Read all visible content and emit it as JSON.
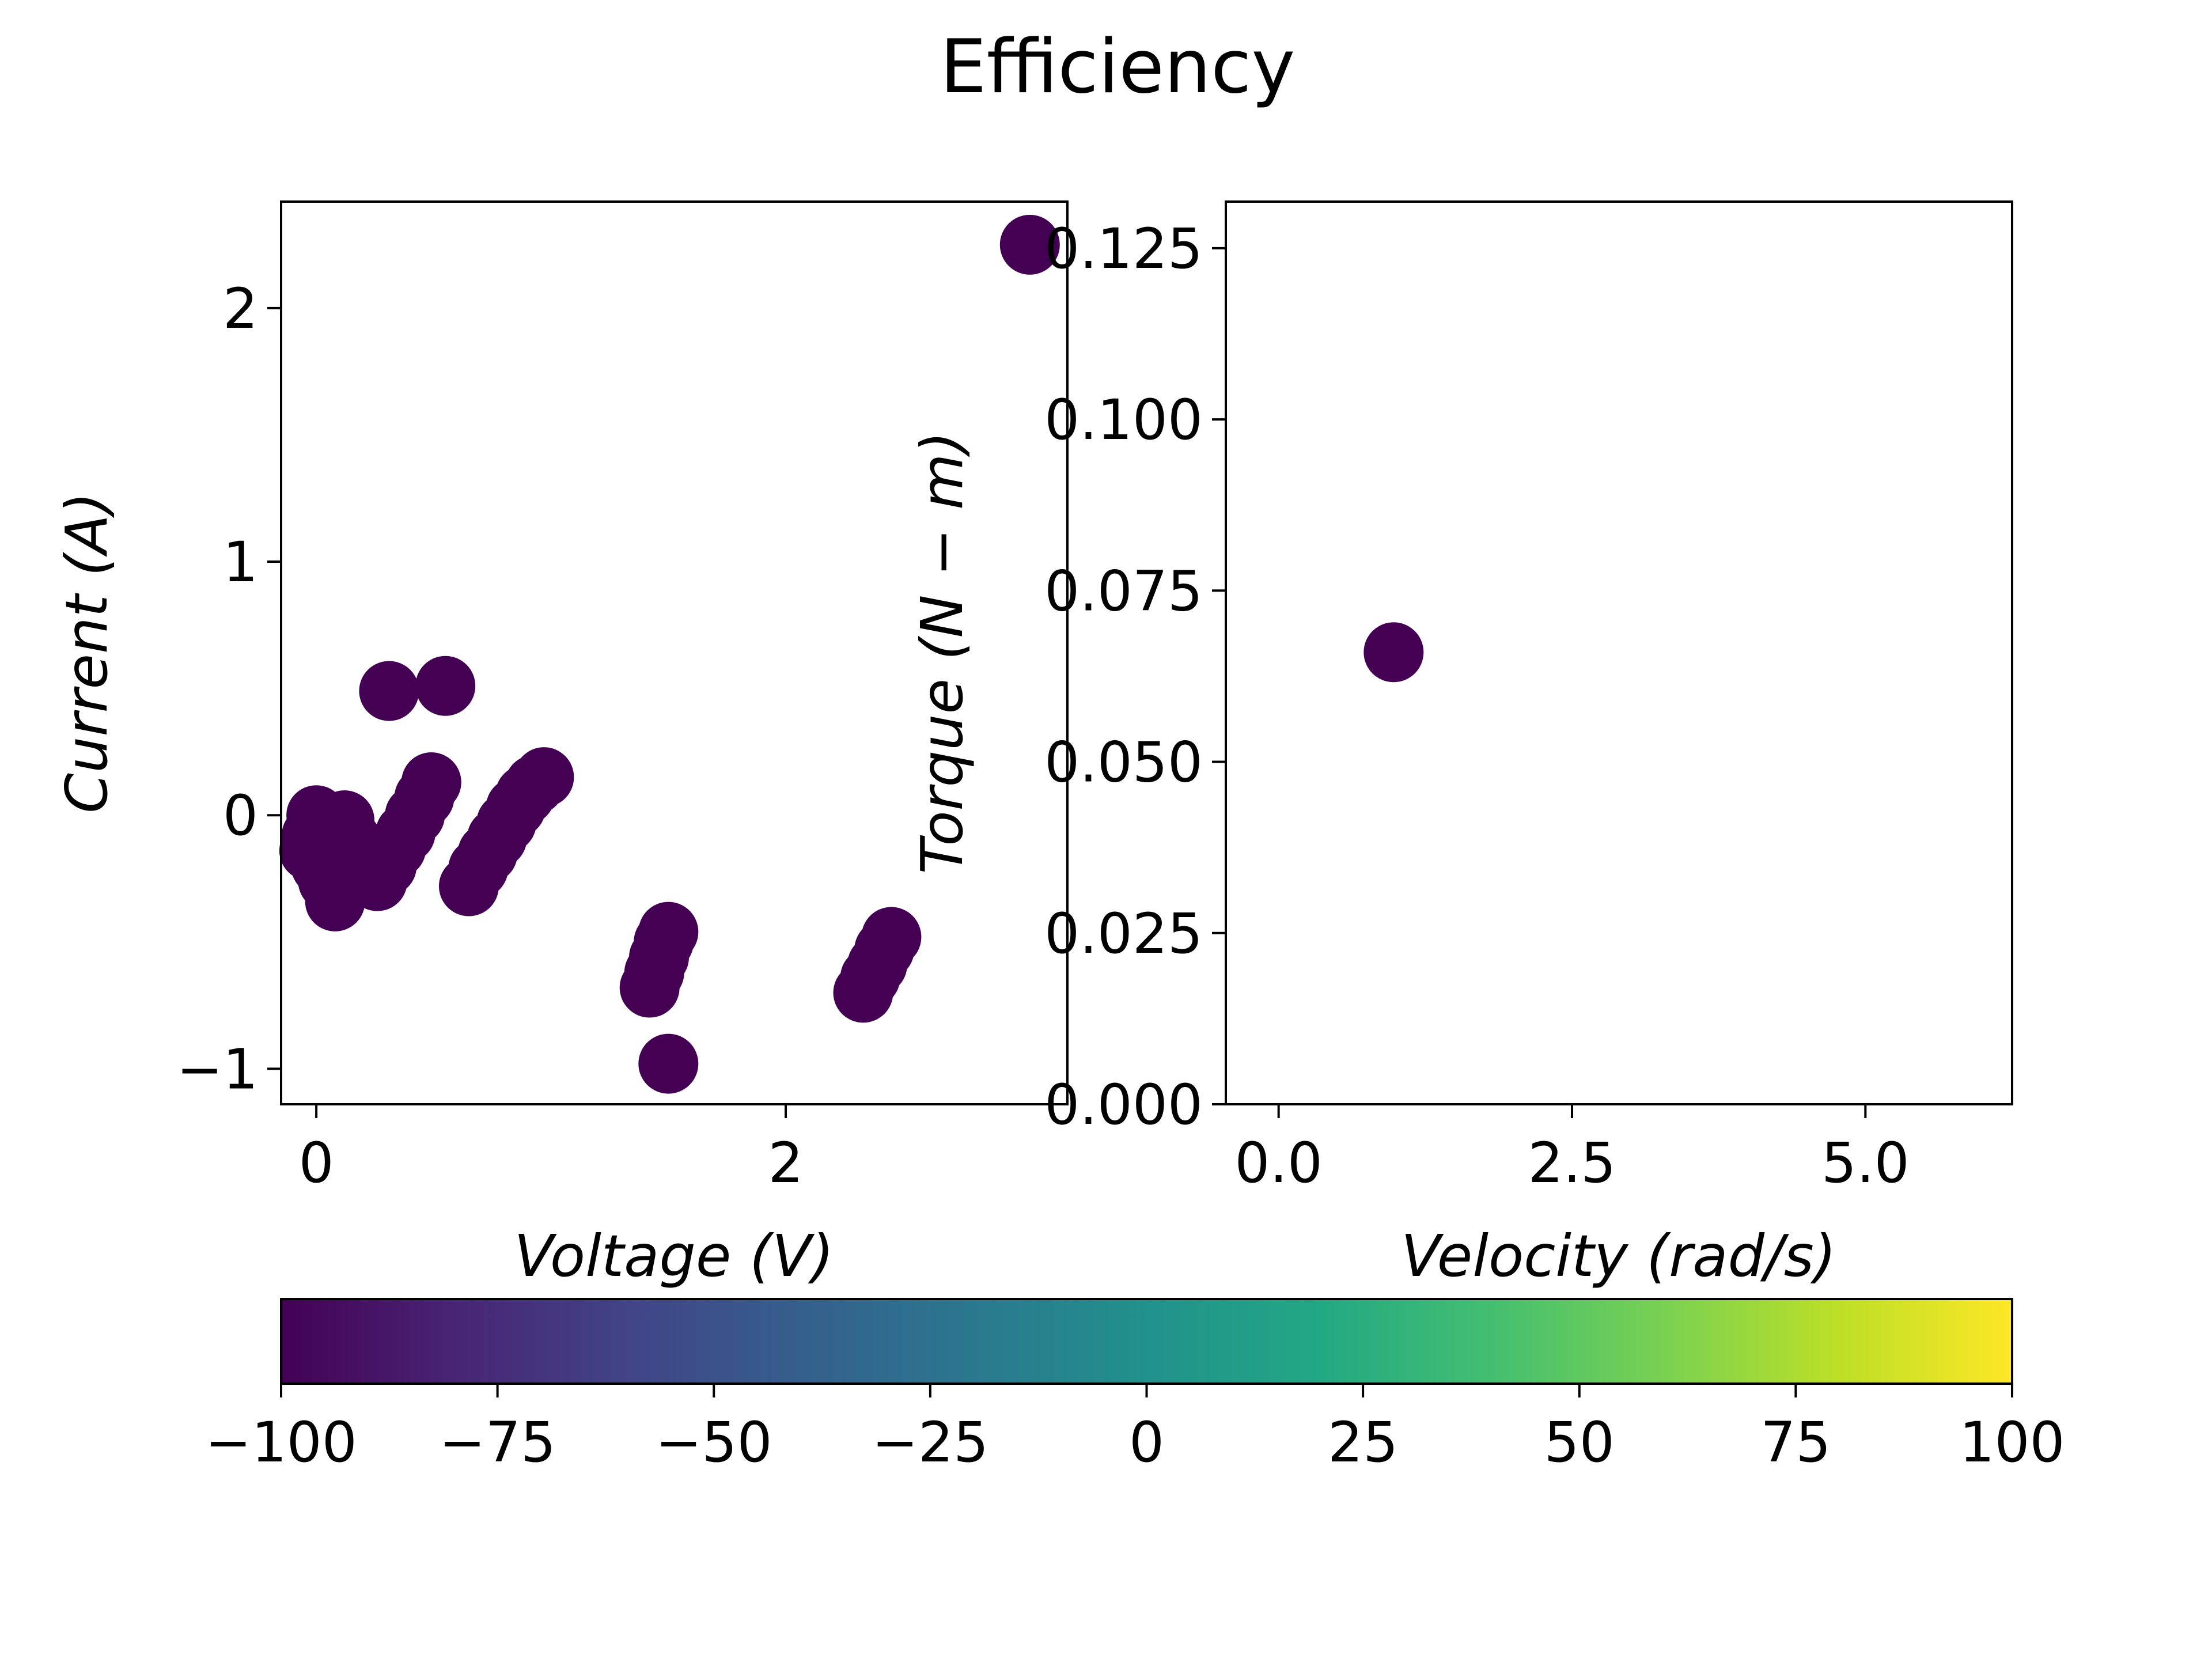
{
  "title": "Efficiency",
  "chart_data": [
    {
      "type": "scatter",
      "xlabel": "Voltage (V)",
      "ylabel": "Current (A)",
      "xlim": [
        -0.15,
        3.2
      ],
      "ylim": [
        -1.14,
        2.42
      ],
      "xticks": [
        {
          "value": 0,
          "label": "0"
        },
        {
          "value": 2,
          "label": "2"
        }
      ],
      "yticks": [
        {
          "value": -1,
          "label": "−1"
        },
        {
          "value": 0,
          "label": "0"
        },
        {
          "value": 1,
          "label": "1"
        },
        {
          "value": 2,
          "label": "2"
        }
      ],
      "grid": false,
      "color": "#440154",
      "points": [
        {
          "x": 0.0,
          "y": 0.0
        },
        {
          "x": -0.02,
          "y": -0.08
        },
        {
          "x": -0.03,
          "y": -0.14
        },
        {
          "x": 0.02,
          "y": -0.2
        },
        {
          "x": 0.05,
          "y": -0.26
        },
        {
          "x": 0.08,
          "y": -0.34
        },
        {
          "x": 0.12,
          "y": -0.02
        },
        {
          "x": 0.15,
          "y": -0.1
        },
        {
          "x": 0.18,
          "y": -0.16
        },
        {
          "x": 0.22,
          "y": -0.22
        },
        {
          "x": 0.26,
          "y": -0.26
        },
        {
          "x": 0.3,
          "y": -0.2
        },
        {
          "x": 0.34,
          "y": -0.13
        },
        {
          "x": 0.38,
          "y": -0.07
        },
        {
          "x": 0.42,
          "y": 0.0
        },
        {
          "x": 0.46,
          "y": 0.07
        },
        {
          "x": 0.49,
          "y": 0.13
        },
        {
          "x": 0.31,
          "y": 0.49
        },
        {
          "x": 0.55,
          "y": 0.51
        },
        {
          "x": 0.65,
          "y": -0.28
        },
        {
          "x": 0.69,
          "y": -0.21
        },
        {
          "x": 0.73,
          "y": -0.15
        },
        {
          "x": 0.77,
          "y": -0.09
        },
        {
          "x": 0.81,
          "y": -0.03
        },
        {
          "x": 0.85,
          "y": 0.03
        },
        {
          "x": 0.89,
          "y": 0.08
        },
        {
          "x": 0.93,
          "y": 0.12
        },
        {
          "x": 0.97,
          "y": 0.15
        },
        {
          "x": 1.42,
          "y": -0.68
        },
        {
          "x": 1.44,
          "y": -0.62
        },
        {
          "x": 1.46,
          "y": -0.56
        },
        {
          "x": 1.48,
          "y": -0.5
        },
        {
          "x": 1.5,
          "y": -0.46
        },
        {
          "x": 1.5,
          "y": -0.98
        },
        {
          "x": 2.33,
          "y": -0.7
        },
        {
          "x": 2.36,
          "y": -0.64
        },
        {
          "x": 2.39,
          "y": -0.59
        },
        {
          "x": 2.42,
          "y": -0.53
        },
        {
          "x": 2.45,
          "y": -0.48
        },
        {
          "x": 3.04,
          "y": 2.25
        }
      ]
    },
    {
      "type": "scatter",
      "xlabel": "Velocity (rad/s)",
      "ylabel": "Torque (N − m)",
      "xlim": [
        -0.45,
        6.25
      ],
      "ylim": [
        0.0,
        0.1318
      ],
      "xticks": [
        {
          "value": 0,
          "label": "0.0"
        },
        {
          "value": 2.5,
          "label": "2.5"
        },
        {
          "value": 5,
          "label": "5.0"
        }
      ],
      "yticks": [
        {
          "value": 0,
          "label": "0.000"
        },
        {
          "value": 0.025,
          "label": "0.025"
        },
        {
          "value": 0.05,
          "label": "0.050"
        },
        {
          "value": 0.075,
          "label": "0.075"
        },
        {
          "value": 0.1,
          "label": "0.100"
        },
        {
          "value": 0.125,
          "label": "0.125"
        }
      ],
      "grid": false,
      "color": "#440154",
      "points": [
        {
          "x": 0.98,
          "y": 0.066
        }
      ]
    }
  ],
  "colorbar": {
    "colormap": "viridis",
    "orientation": "horizontal",
    "range": [
      -100,
      100
    ],
    "ticks": [
      {
        "value": -100,
        "label": "−100"
      },
      {
        "value": -75,
        "label": "−75"
      },
      {
        "value": -50,
        "label": "−50"
      },
      {
        "value": -25,
        "label": "−25"
      },
      {
        "value": 0,
        "label": "0"
      },
      {
        "value": 25,
        "label": "25"
      },
      {
        "value": 50,
        "label": "50"
      },
      {
        "value": 75,
        "label": "75"
      },
      {
        "value": 100,
        "label": "100"
      }
    ],
    "colors": [
      "#440154",
      "#482475",
      "#414487",
      "#355f8d",
      "#2a788e",
      "#21918c",
      "#22a884",
      "#44bf70",
      "#7ad151",
      "#bddf26",
      "#fde725"
    ]
  }
}
